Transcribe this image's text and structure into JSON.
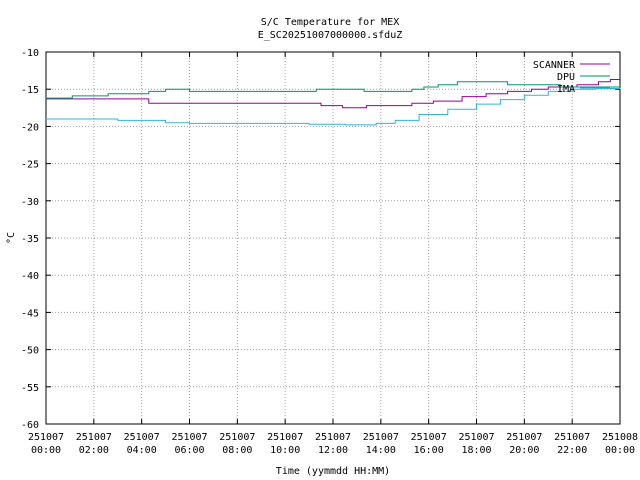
{
  "chart_data": {
    "type": "line",
    "title": "S/C Temperature for MEX",
    "subtitle": "E_SC20251007000000.sfduZ",
    "xlabel": "Time (yymmdd HH:MM)",
    "ylabel": "°C",
    "xlim": [
      0,
      24
    ],
    "ylim": [
      -60,
      -10
    ],
    "grid": true,
    "legend_position": "top-right",
    "y_ticks": [
      "-10",
      "-15",
      "-20",
      "-25",
      "-30",
      "-35",
      "-40",
      "-45",
      "-50",
      "-55",
      "-60"
    ],
    "x_ticks": [
      {
        "date": "251007",
        "time": "00:00"
      },
      {
        "date": "251007",
        "time": "02:00"
      },
      {
        "date": "251007",
        "time": "04:00"
      },
      {
        "date": "251007",
        "time": "06:00"
      },
      {
        "date": "251007",
        "time": "08:00"
      },
      {
        "date": "251007",
        "time": "10:00"
      },
      {
        "date": "251007",
        "time": "12:00"
      },
      {
        "date": "251007",
        "time": "14:00"
      },
      {
        "date": "251007",
        "time": "16:00"
      },
      {
        "date": "251007",
        "time": "18:00"
      },
      {
        "date": "251007",
        "time": "20:00"
      },
      {
        "date": "251007",
        "time": "22:00"
      },
      {
        "date": "251008",
        "time": "00:00"
      }
    ],
    "series": [
      {
        "name": "SCANNER",
        "color": "#94009a",
        "x": [
          0,
          1.4,
          2.3,
          4.3,
          7.0,
          11.1,
          11.5,
          12.4,
          13.4,
          15.3,
          16.2,
          17.4,
          18.4,
          19.3,
          20.3,
          21.0,
          22.2,
          23.1,
          23.6,
          24
        ],
        "y": [
          -16.3,
          -16.3,
          -16.3,
          -16.9,
          -16.9,
          -16.9,
          -17.2,
          -17.5,
          -17.2,
          -16.9,
          -16.6,
          -16.0,
          -15.6,
          -15.3,
          -15.0,
          -14.7,
          -14.4,
          -14.0,
          -13.7,
          -13.7
        ]
      },
      {
        "name": "DPU",
        "color": "#00946b",
        "x": [
          0,
          1.0,
          1.1,
          2.6,
          4.3,
          5.0,
          6.0,
          9.8,
          11.3,
          13.3,
          15.3,
          15.8,
          16.4,
          17.2,
          19.3,
          21.5,
          22.6,
          24
        ],
        "y": [
          -16.2,
          -16.2,
          -15.9,
          -15.6,
          -15.3,
          -15.0,
          -15.3,
          -15.3,
          -15.0,
          -15.3,
          -15.0,
          -14.7,
          -14.4,
          -14.0,
          -14.4,
          -14.7,
          -14.7,
          -14.7
        ]
      },
      {
        "name": "IMA",
        "color": "#33b5d6",
        "x": [
          0,
          2.0,
          3.0,
          5.0,
          6.0,
          8.0,
          11.0,
          12.5,
          13.8,
          14.6,
          15.6,
          16.8,
          18.0,
          19.0,
          20.0,
          21.0,
          22.0,
          23.0,
          24
        ],
        "y": [
          -19.0,
          -19.0,
          -19.2,
          -19.5,
          -19.6,
          -19.6,
          -19.7,
          -19.8,
          -19.6,
          -19.2,
          -18.4,
          -17.7,
          -17.0,
          -16.4,
          -15.8,
          -15.3,
          -15.0,
          -14.9,
          -14.8
        ]
      }
    ]
  }
}
